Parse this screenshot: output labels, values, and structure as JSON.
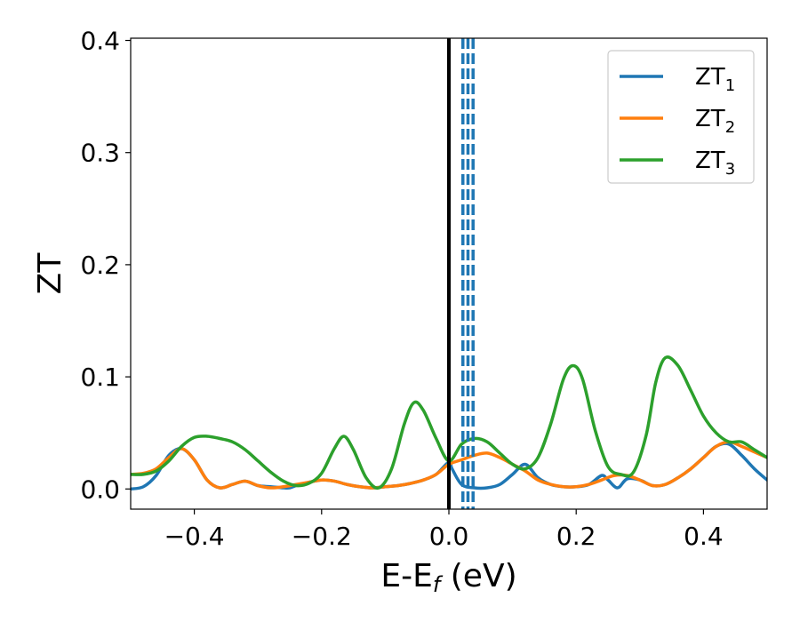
{
  "chart_data": {
    "type": "line",
    "xlabel": "E-E",
    "xlabel_sub": "f",
    "xlabel_unit": " (eV)",
    "ylabel": "ZT",
    "xlim": [
      -0.5,
      0.5
    ],
    "ylim": [
      -0.018,
      0.402
    ],
    "x_ticks": [
      -0.4,
      -0.2,
      0.0,
      0.2,
      0.4
    ],
    "x_tick_labels": [
      "−0.4",
      "−0.2",
      "0.0",
      "0.2",
      "0.4"
    ],
    "y_ticks": [
      0.0,
      0.1,
      0.2,
      0.3,
      0.4
    ],
    "y_tick_labels": [
      "0.0",
      "0.1",
      "0.2",
      "0.3",
      "0.4"
    ],
    "grid": false,
    "legend_position": "top-right",
    "vertical_lines": [
      {
        "x": 0.0,
        "color": "#000000",
        "style": "solid"
      },
      {
        "x": 0.022,
        "color": "#1f77b4",
        "style": "dashed"
      },
      {
        "x": 0.03,
        "color": "#1f77b4",
        "style": "dashed"
      },
      {
        "x": 0.038,
        "color": "#1f77b4",
        "style": "dashed"
      }
    ],
    "series": [
      {
        "name": "ZT",
        "name_sub": "1",
        "color": "#1f77b4",
        "x": [
          -0.5,
          -0.48,
          -0.46,
          -0.44,
          -0.42,
          -0.4,
          -0.38,
          -0.36,
          -0.34,
          -0.32,
          -0.3,
          -0.28,
          -0.26,
          -0.25,
          -0.24,
          -0.22,
          -0.2,
          -0.18,
          -0.16,
          -0.14,
          -0.12,
          -0.1,
          -0.08,
          -0.06,
          -0.04,
          -0.02,
          0.0,
          0.005,
          0.02,
          0.04,
          0.06,
          0.08,
          0.1,
          0.12,
          0.14,
          0.16,
          0.18,
          0.2,
          0.22,
          0.24,
          0.25,
          0.265,
          0.28,
          0.3,
          0.32,
          0.34,
          0.36,
          0.38,
          0.4,
          0.42,
          0.44,
          0.46,
          0.48,
          0.5
        ],
        "y": [
          0.0,
          0.002,
          0.012,
          0.03,
          0.036,
          0.026,
          0.008,
          0.001,
          0.004,
          0.007,
          0.003,
          0.002,
          0.001,
          0.001,
          0.003,
          0.006,
          0.008,
          0.007,
          0.004,
          0.002,
          0.001,
          0.002,
          0.003,
          0.005,
          0.008,
          0.013,
          0.024,
          0.018,
          0.004,
          0.001,
          0.001,
          0.004,
          0.013,
          0.022,
          0.01,
          0.004,
          0.002,
          0.002,
          0.004,
          0.012,
          0.008,
          0.001,
          0.009,
          0.008,
          0.003,
          0.004,
          0.01,
          0.018,
          0.028,
          0.038,
          0.04,
          0.03,
          0.018,
          0.008
        ]
      },
      {
        "name": "ZT",
        "name_sub": "2",
        "color": "#ff7f0e",
        "x": [
          -0.5,
          -0.48,
          -0.46,
          -0.44,
          -0.42,
          -0.4,
          -0.38,
          -0.36,
          -0.34,
          -0.32,
          -0.3,
          -0.28,
          -0.26,
          -0.24,
          -0.22,
          -0.2,
          -0.18,
          -0.16,
          -0.14,
          -0.12,
          -0.1,
          -0.08,
          -0.06,
          -0.04,
          -0.02,
          0.0,
          0.02,
          0.04,
          0.06,
          0.08,
          0.1,
          0.12,
          0.14,
          0.16,
          0.18,
          0.2,
          0.22,
          0.24,
          0.26,
          0.28,
          0.3,
          0.32,
          0.34,
          0.36,
          0.38,
          0.4,
          0.42,
          0.44,
          0.46,
          0.48,
          0.5
        ],
        "y": [
          0.013,
          0.014,
          0.018,
          0.028,
          0.036,
          0.026,
          0.008,
          0.001,
          0.004,
          0.007,
          0.003,
          0.001,
          0.002,
          0.004,
          0.006,
          0.008,
          0.007,
          0.004,
          0.002,
          0.001,
          0.002,
          0.003,
          0.005,
          0.008,
          0.013,
          0.022,
          0.026,
          0.03,
          0.032,
          0.028,
          0.022,
          0.016,
          0.008,
          0.004,
          0.002,
          0.002,
          0.004,
          0.008,
          0.012,
          0.012,
          0.008,
          0.003,
          0.004,
          0.01,
          0.018,
          0.028,
          0.038,
          0.042,
          0.038,
          0.033,
          0.028
        ]
      },
      {
        "name": "ZT",
        "name_sub": "3",
        "color": "#2ca02c",
        "x": [
          -0.5,
          -0.48,
          -0.46,
          -0.44,
          -0.42,
          -0.4,
          -0.38,
          -0.36,
          -0.34,
          -0.32,
          -0.3,
          -0.28,
          -0.26,
          -0.24,
          -0.22,
          -0.2,
          -0.18,
          -0.165,
          -0.15,
          -0.13,
          -0.11,
          -0.09,
          -0.07,
          -0.055,
          -0.04,
          -0.02,
          0.0,
          0.02,
          0.04,
          0.06,
          0.08,
          0.1,
          0.12,
          0.14,
          0.16,
          0.18,
          0.195,
          0.21,
          0.23,
          0.25,
          0.27,
          0.29,
          0.31,
          0.325,
          0.34,
          0.36,
          0.38,
          0.4,
          0.42,
          0.44,
          0.46,
          0.48,
          0.5
        ],
        "y": [
          0.013,
          0.013,
          0.016,
          0.025,
          0.038,
          0.046,
          0.047,
          0.045,
          0.042,
          0.035,
          0.025,
          0.015,
          0.007,
          0.003,
          0.005,
          0.014,
          0.036,
          0.047,
          0.035,
          0.01,
          0.001,
          0.018,
          0.058,
          0.077,
          0.07,
          0.045,
          0.025,
          0.04,
          0.045,
          0.042,
          0.032,
          0.022,
          0.018,
          0.028,
          0.058,
          0.098,
          0.11,
          0.098,
          0.052,
          0.02,
          0.013,
          0.015,
          0.048,
          0.095,
          0.117,
          0.11,
          0.088,
          0.065,
          0.05,
          0.042,
          0.042,
          0.035,
          0.028
        ]
      }
    ]
  }
}
